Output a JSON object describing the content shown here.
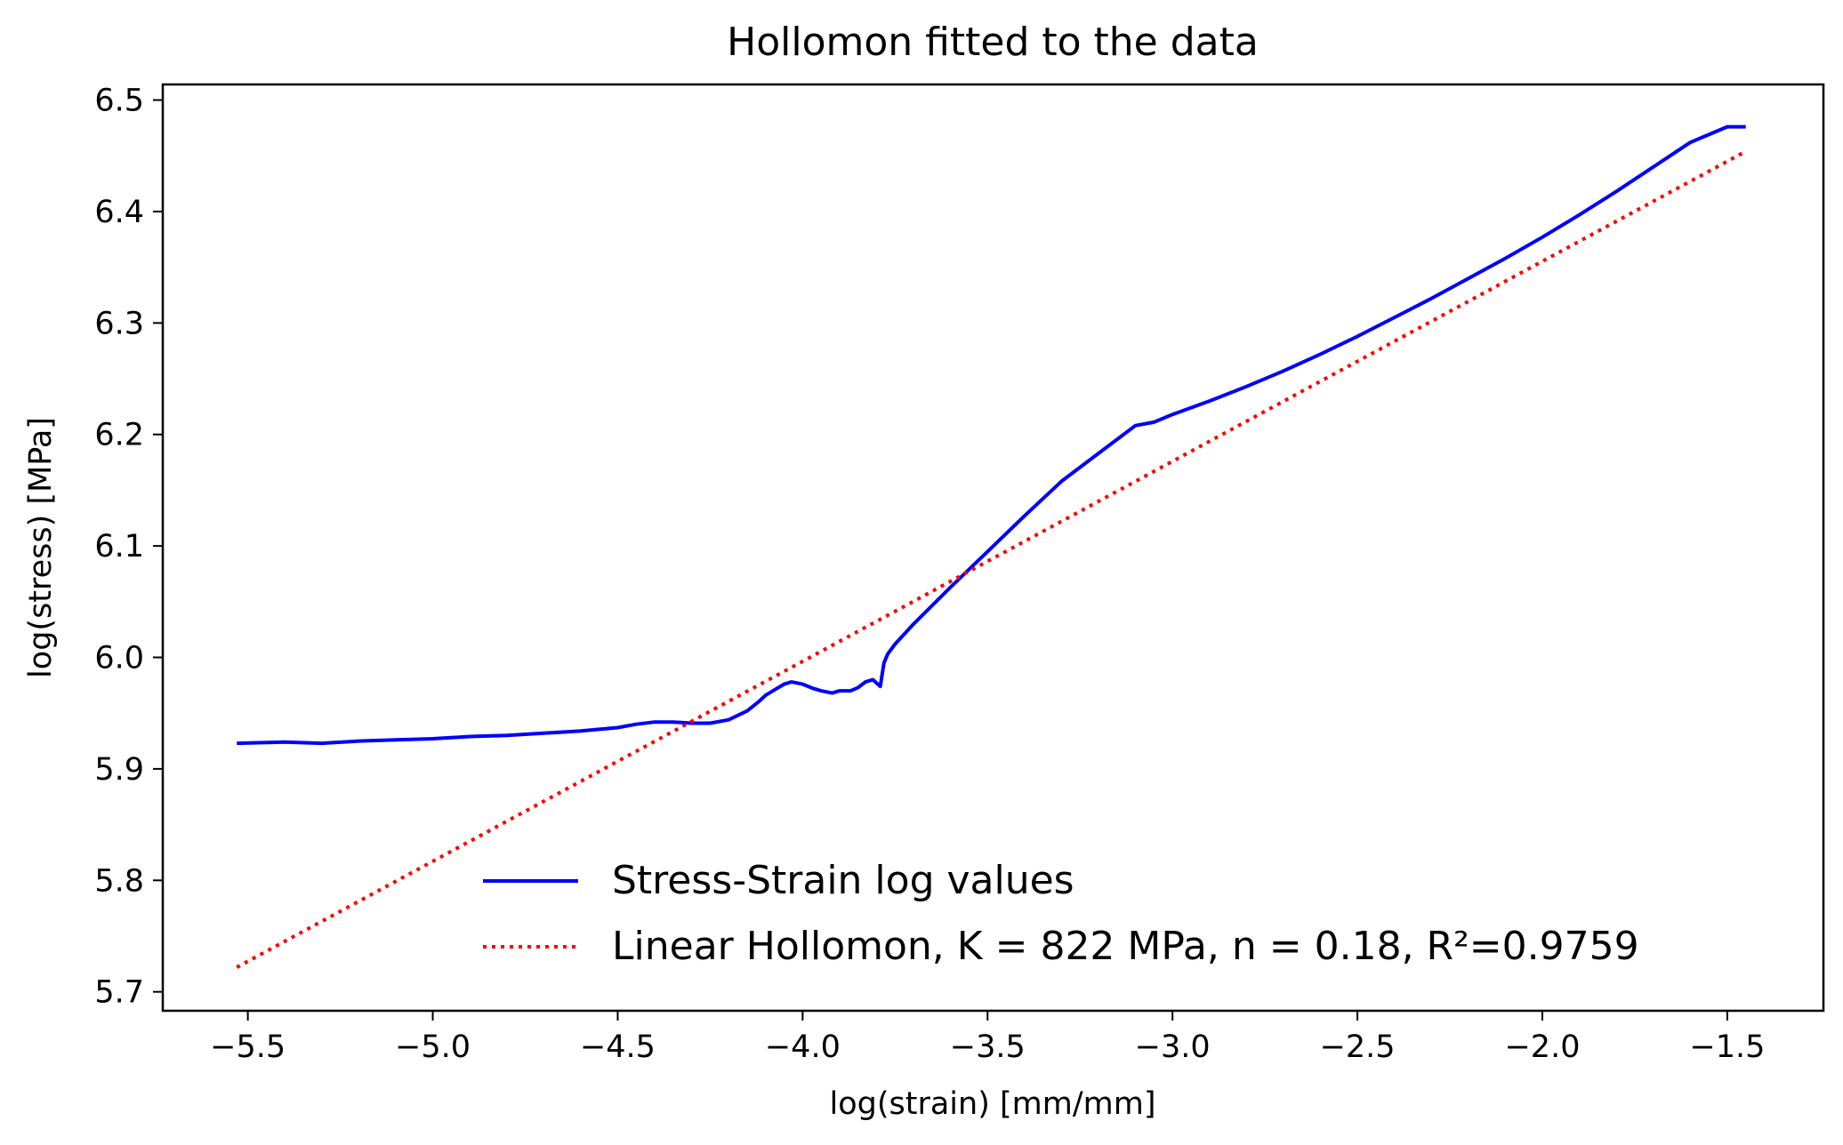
{
  "chart_data": {
    "type": "line",
    "title": "Hollomon fitted to the data",
    "xlabel": "log(strain) [mm/mm]",
    "ylabel": "log(stress) [MPa]",
    "xlim": [
      -5.73,
      -1.24
    ],
    "ylim": [
      5.683,
      6.514
    ],
    "xticks": [
      -5.5,
      -5.0,
      -4.5,
      -4.0,
      -3.5,
      -3.0,
      -2.5,
      -2.0,
      -1.5
    ],
    "xtick_labels": [
      "−5.5",
      "−5.0",
      "−4.5",
      "−4.0",
      "−3.5",
      "−3.0",
      "−2.5",
      "−2.0",
      "−1.5"
    ],
    "yticks": [
      5.7,
      5.8,
      5.9,
      6.0,
      6.1,
      6.2,
      6.3,
      6.4,
      6.5
    ],
    "ytick_labels": [
      "5.7",
      "5.8",
      "5.9",
      "6.0",
      "6.1",
      "6.2",
      "6.3",
      "6.4",
      "6.5"
    ],
    "grid": false,
    "legend_position": "lower-right",
    "series": [
      {
        "name": "Stress-Strain log values",
        "color": "#0000ff",
        "style": "solid",
        "x": [
          -5.53,
          -5.4,
          -5.3,
          -5.2,
          -5.1,
          -5.0,
          -4.9,
          -4.8,
          -4.7,
          -4.6,
          -4.5,
          -4.45,
          -4.4,
          -4.35,
          -4.3,
          -4.25,
          -4.2,
          -4.15,
          -4.12,
          -4.1,
          -4.07,
          -4.05,
          -4.03,
          -4.0,
          -3.97,
          -3.95,
          -3.92,
          -3.9,
          -3.87,
          -3.85,
          -3.83,
          -3.81,
          -3.8,
          -3.79,
          -3.785,
          -3.78,
          -3.77,
          -3.75,
          -3.7,
          -3.6,
          -3.5,
          -3.4,
          -3.3,
          -3.2,
          -3.1,
          -3.05,
          -3.0,
          -2.9,
          -2.8,
          -2.7,
          -2.6,
          -2.5,
          -2.4,
          -2.3,
          -2.2,
          -2.1,
          -2.0,
          -1.9,
          -1.8,
          -1.7,
          -1.6,
          -1.5,
          -1.45
        ],
        "y": [
          5.923,
          5.924,
          5.923,
          5.925,
          5.926,
          5.927,
          5.929,
          5.93,
          5.932,
          5.934,
          5.937,
          5.94,
          5.942,
          5.942,
          5.941,
          5.941,
          5.944,
          5.952,
          5.96,
          5.966,
          5.972,
          5.976,
          5.978,
          5.976,
          5.972,
          5.97,
          5.968,
          5.97,
          5.97,
          5.973,
          5.978,
          5.98,
          5.977,
          5.974,
          5.985,
          5.995,
          6.003,
          6.012,
          6.03,
          6.063,
          6.095,
          6.127,
          6.158,
          6.183,
          6.208,
          6.211,
          6.218,
          6.23,
          6.243,
          6.257,
          6.272,
          6.288,
          6.305,
          6.322,
          6.34,
          6.358,
          6.377,
          6.397,
          6.418,
          6.44,
          6.462,
          6.476,
          6.476
        ]
      },
      {
        "name": "Linear Hollomon, K = 822 MPa, n = 0.18, R²=0.9759",
        "color": "#ff0000",
        "style": "dotted",
        "x": [
          -5.53,
          -1.45
        ],
        "y": [
          5.722,
          6.454
        ]
      }
    ]
  }
}
